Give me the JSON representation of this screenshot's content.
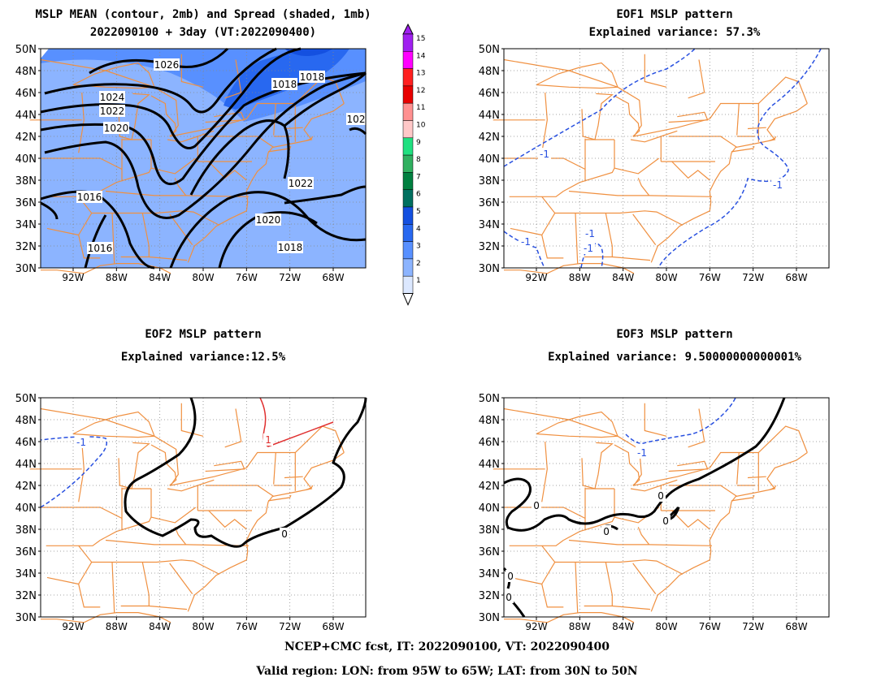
{
  "panels": [
    {
      "title1": "MSLP MEAN (contour, 2mb) and Spread (shaded, 1mb)",
      "title2": "2022090100 + 3day (VT:2022090400)",
      "contour_labels": [
        "1026",
        "1024",
        "1022",
        "1020",
        "1018",
        "1018",
        "1022",
        "1020",
        "1018",
        "1016",
        "1016",
        "102"
      ]
    },
    {
      "title1": "EOF1 MSLP pattern",
      "title2": "Explained variance: 57.3%",
      "contour_labels": [
        "-1",
        "-1",
        "-1",
        "-1",
        "-1"
      ]
    },
    {
      "title1": "EOF2 MSLP pattern",
      "title2": "Explained variance:12.5%",
      "contour_labels": [
        "-1",
        "1",
        "0"
      ]
    },
    {
      "title1": "EOF3 MSLP pattern",
      "title2": "Explained variance: 9.50000000000001%",
      "contour_labels": [
        "0",
        "0",
        "0",
        "0",
        "-1",
        "0",
        "0"
      ]
    }
  ],
  "lat_labels": [
    "50N",
    "48N",
    "46N",
    "44N",
    "42N",
    "40N",
    "38N",
    "36N",
    "34N",
    "32N",
    "30N"
  ],
  "lon_labels": [
    "92W",
    "88W",
    "84W",
    "80W",
    "76W",
    "72W",
    "68W"
  ],
  "colorbar": {
    "labels": [
      "15",
      "14",
      "13",
      "12",
      "11",
      "10",
      "9",
      "8",
      "7",
      "6",
      "5",
      "4",
      "3",
      "2",
      "1"
    ],
    "colors": [
      "#a020f0",
      "#ff00ff",
      "#ff2020",
      "#e80000",
      "#ff9090",
      "#ffc8c8",
      "#20e080",
      "#30b060",
      "#008040",
      "#007060",
      "#1450e0",
      "#2868f0",
      "#5890ff",
      "#8cb4ff",
      "#dce8ff"
    ]
  },
  "footer": {
    "line1": "NCEP+CMC fcst, IT: 2022090100, VT: 2022090400",
    "line2": "Valid region: LON: from 95W to 65W; LAT: from 30N to 50N"
  },
  "colors": {
    "border": "#f09040",
    "shade_light": "#8cb4ff",
    "shade_mid": "#5890ff",
    "shade_dark": "#2868f0",
    "neg_contour": "#2850e0",
    "pos_contour": "#e03030",
    "zero_contour": "#000000"
  }
}
